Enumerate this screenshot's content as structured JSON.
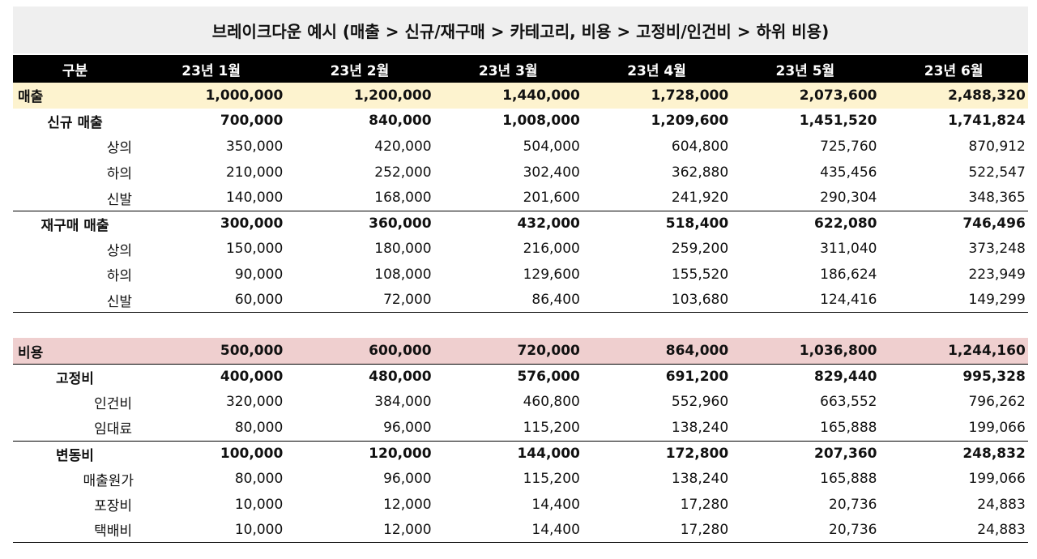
{
  "title": "브레이크다운 예시 (매출 > 신규/재구매 > 카테고리, 비용 > 고정비/인건비 > 하위 비용)",
  "header": [
    "구분",
    "23년 1월",
    "23년 2월",
    "23년 3월",
    "23년 4월",
    "23년 5월",
    "23년 6월"
  ],
  "sales": {
    "total": {
      "label": "매출",
      "values": [
        "1,000,000",
        "1,200,000",
        "1,440,000",
        "1,728,000",
        "2,073,600",
        "2,488,320"
      ]
    },
    "new": {
      "label": "신규 매출",
      "values": [
        "700,000",
        "840,000",
        "1,008,000",
        "1,209,600",
        "1,451,520",
        "1,741,824"
      ]
    },
    "new_items": [
      {
        "label": "상의",
        "values": [
          "350,000",
          "420,000",
          "504,000",
          "604,800",
          "725,760",
          "870,912"
        ]
      },
      {
        "label": "하의",
        "values": [
          "210,000",
          "252,000",
          "302,400",
          "362,880",
          "435,456",
          "522,547"
        ]
      },
      {
        "label": "신발",
        "values": [
          "140,000",
          "168,000",
          "201,600",
          "241,920",
          "290,304",
          "348,365"
        ]
      }
    ],
    "repeat": {
      "label": "재구매 매출",
      "values": [
        "300,000",
        "360,000",
        "432,000",
        "518,400",
        "622,080",
        "746,496"
      ]
    },
    "repeat_items": [
      {
        "label": "상의",
        "values": [
          "150,000",
          "180,000",
          "216,000",
          "259,200",
          "311,040",
          "373,248"
        ]
      },
      {
        "label": "하의",
        "values": [
          "90,000",
          "108,000",
          "129,600",
          "155,520",
          "186,624",
          "223,949"
        ]
      },
      {
        "label": "신발",
        "values": [
          "60,000",
          "72,000",
          "86,400",
          "103,680",
          "124,416",
          "149,299"
        ]
      }
    ]
  },
  "costs": {
    "total": {
      "label": "비용",
      "values": [
        "500,000",
        "600,000",
        "720,000",
        "864,000",
        "1,036,800",
        "1,244,160"
      ]
    },
    "fixed": {
      "label": "고정비",
      "values": [
        "400,000",
        "480,000",
        "576,000",
        "691,200",
        "829,440",
        "995,328"
      ]
    },
    "fixed_items": [
      {
        "label": "인건비",
        "values": [
          "320,000",
          "384,000",
          "460,800",
          "552,960",
          "663,552",
          "796,262"
        ]
      },
      {
        "label": "임대료",
        "values": [
          "80,000",
          "96,000",
          "115,200",
          "138,240",
          "165,888",
          "199,066"
        ]
      }
    ],
    "variable": {
      "label": "변동비",
      "values": [
        "100,000",
        "120,000",
        "144,000",
        "172,800",
        "207,360",
        "248,832"
      ]
    },
    "variable_items": [
      {
        "label": "매출원가",
        "values": [
          "80,000",
          "96,000",
          "115,200",
          "138,240",
          "165,888",
          "199,066"
        ]
      },
      {
        "label": "포장비",
        "values": [
          "10,000",
          "12,000",
          "14,400",
          "17,280",
          "20,736",
          "24,883"
        ]
      },
      {
        "label": "택배비",
        "values": [
          "10,000",
          "12,000",
          "14,400",
          "17,280",
          "20,736",
          "24,883"
        ]
      }
    ]
  }
}
